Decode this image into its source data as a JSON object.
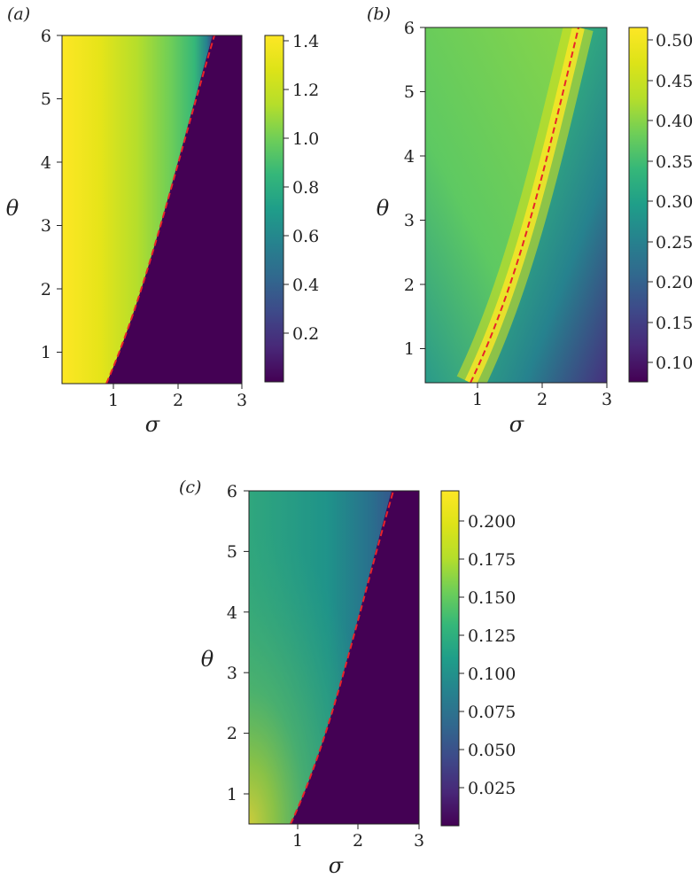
{
  "chart_data": [
    {
      "panel_label": "(a)",
      "type": "heatmap",
      "xlabel": "σ",
      "ylabel": "θ",
      "xlim": [
        0.2,
        3.0
      ],
      "ylim": [
        0.5,
        6.0
      ],
      "xticks": [
        "1",
        "2",
        "3"
      ],
      "yticks": [
        "1",
        "2",
        "3",
        "4",
        "5",
        "6"
      ],
      "colormap": "viridis",
      "colorbar_range": [
        0.0,
        1.42
      ],
      "colorbar_ticks": [
        "0.2",
        "0.4",
        "0.6",
        "0.8",
        "1.0",
        "1.2",
        "1.4"
      ],
      "boundary_curve": {
        "style": "dashed",
        "color": "#e8242a",
        "points": [
          [
            0.88,
            0.5
          ],
          [
            1.2,
            1.4
          ],
          [
            1.5,
            2.2
          ],
          [
            1.8,
            3.0
          ],
          [
            2.1,
            3.9
          ],
          [
            2.4,
            5.1
          ],
          [
            2.6,
            6.0
          ]
        ]
      },
      "region_left_of_curve": "high values, 1.42 near σ=0.2 decreasing to about 0.9 at the curve",
      "region_right_of_curve": "near 0"
    },
    {
      "panel_label": "(b)",
      "type": "heatmap",
      "xlabel": "σ",
      "ylabel": "θ",
      "xlim": [
        0.2,
        3.0
      ],
      "ylim": [
        0.5,
        6.0
      ],
      "xticks": [
        "1",
        "2",
        "3"
      ],
      "yticks": [
        "1",
        "2",
        "3",
        "4",
        "5",
        "6"
      ],
      "colormap": "viridis",
      "colorbar_range": [
        0.07,
        0.51
      ],
      "colorbar_ticks": [
        "0.10",
        "0.15",
        "0.20",
        "0.25",
        "0.30",
        "0.35",
        "0.40",
        "0.45",
        "0.50"
      ],
      "boundary_curve": {
        "style": "dashed",
        "color": "#e8242a",
        "points": [
          [
            0.88,
            0.5
          ],
          [
            1.2,
            1.4
          ],
          [
            1.5,
            2.2
          ],
          [
            1.8,
            3.0
          ],
          [
            2.1,
            3.9
          ],
          [
            2.4,
            5.1
          ],
          [
            2.6,
            6.0
          ]
        ]
      },
      "region_along_curve": "maximum about 0.51",
      "region_far_from_curve": "decreasing to about 0.07 at σ=3, θ=0.5"
    },
    {
      "panel_label": "(c)",
      "type": "heatmap",
      "xlabel": "σ",
      "ylabel": "θ",
      "xlim": [
        0.2,
        3.0
      ],
      "ylim": [
        0.5,
        6.0
      ],
      "xticks": [
        "1",
        "2",
        "3"
      ],
      "yticks": [
        "1",
        "2",
        "3",
        "4",
        "5",
        "6"
      ],
      "colormap": "viridis",
      "colorbar_range": [
        0.0,
        0.22
      ],
      "colorbar_ticks": [
        "0.025",
        "0.050",
        "0.075",
        "0.100",
        "0.125",
        "0.150",
        "0.175",
        "0.200"
      ],
      "boundary_curve": {
        "style": "dashed",
        "color": "#e8242a",
        "points": [
          [
            0.88,
            0.5
          ],
          [
            1.2,
            1.4
          ],
          [
            1.5,
            2.2
          ],
          [
            1.8,
            3.0
          ],
          [
            2.1,
            3.9
          ],
          [
            2.4,
            5.1
          ],
          [
            2.6,
            6.0
          ]
        ]
      },
      "region_left_of_curve": "about 0.21 near σ=0.2, θ=0.5, about 0.11 at high θ",
      "region_right_of_curve": "near 0"
    }
  ]
}
